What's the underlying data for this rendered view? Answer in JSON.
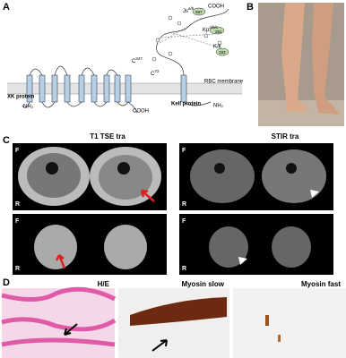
{
  "panels": {
    "a": {
      "label": "A",
      "top_cooh": "COOH",
      "js": {
        "base": "Js",
        "sup": "a/b",
        "site": "597"
      },
      "kp": {
        "base": "Kp",
        "sup": "a/b/c",
        "site": "281"
      },
      "kk": {
        "base": "K/k",
        "site": "193"
      },
      "c1": {
        "base": "C",
        "sup": "347"
      },
      "c2": {
        "base": "C",
        "sup": "72"
      },
      "xk_protein": "XK protein",
      "xk_nh2": "NH₂",
      "xk_cooh": "COOH",
      "kell_protein": "Kell protein",
      "kell_nh2": "NH₂",
      "membrane": "RBC membrane"
    },
    "b": {
      "label": "B"
    },
    "c": {
      "label": "C",
      "title_left": "T1 TSE tra",
      "title_right": "STIR tra",
      "orient": [
        [
          "F",
          "R"
        ],
        [
          "F",
          "R"
        ],
        [
          "F",
          "R"
        ],
        [
          "F",
          "R"
        ]
      ]
    },
    "d": {
      "label": "D",
      "titles": [
        "H/E",
        "Myosin slow",
        "Myosin fast"
      ]
    }
  }
}
